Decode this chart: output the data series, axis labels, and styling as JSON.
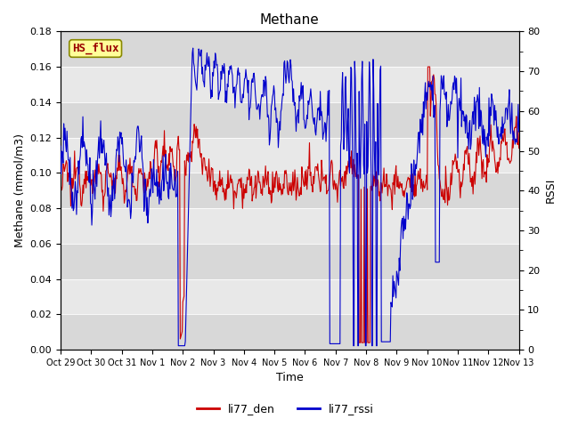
{
  "title": "Methane",
  "ylabel_left": "Methane (mmol/m3)",
  "ylabel_right": "RSSI",
  "xlabel": "Time",
  "ylim_left": [
    0.0,
    0.18
  ],
  "ylim_right": [
    0,
    80
  ],
  "yticks_left": [
    0.0,
    0.02,
    0.04,
    0.06,
    0.08,
    0.1,
    0.12,
    0.14,
    0.16,
    0.18
  ],
  "yticks_right": [
    0,
    10,
    20,
    30,
    40,
    50,
    60,
    70,
    80
  ],
  "xtick_labels": [
    "Oct 29",
    "Oct 30",
    "Oct 31",
    "Nov 1",
    "Nov 2",
    "Nov 3",
    "Nov 4",
    "Nov 5",
    "Nov 6",
    "Nov 7",
    "Nov 8",
    "Nov 9",
    "Nov 10",
    "Nov 11",
    "Nov 12",
    "Nov 13"
  ],
  "legend_labels": [
    "li77_den",
    "li77_rssi"
  ],
  "line_colors": [
    "#cc0000",
    "#0000cc"
  ],
  "hs_flux_label": "HS_flux",
  "hs_flux_bg": "#ffff99",
  "hs_flux_border": "#888800",
  "background_color": "#ffffff",
  "plot_bg_light": "#e8e8e8",
  "plot_bg_dark": "#d8d8d8",
  "grid_color": "#ffffff",
  "title_fontsize": 11,
  "axis_fontsize": 9,
  "tick_fontsize": 8,
  "legend_fontsize": 9,
  "linewidth": 0.8
}
